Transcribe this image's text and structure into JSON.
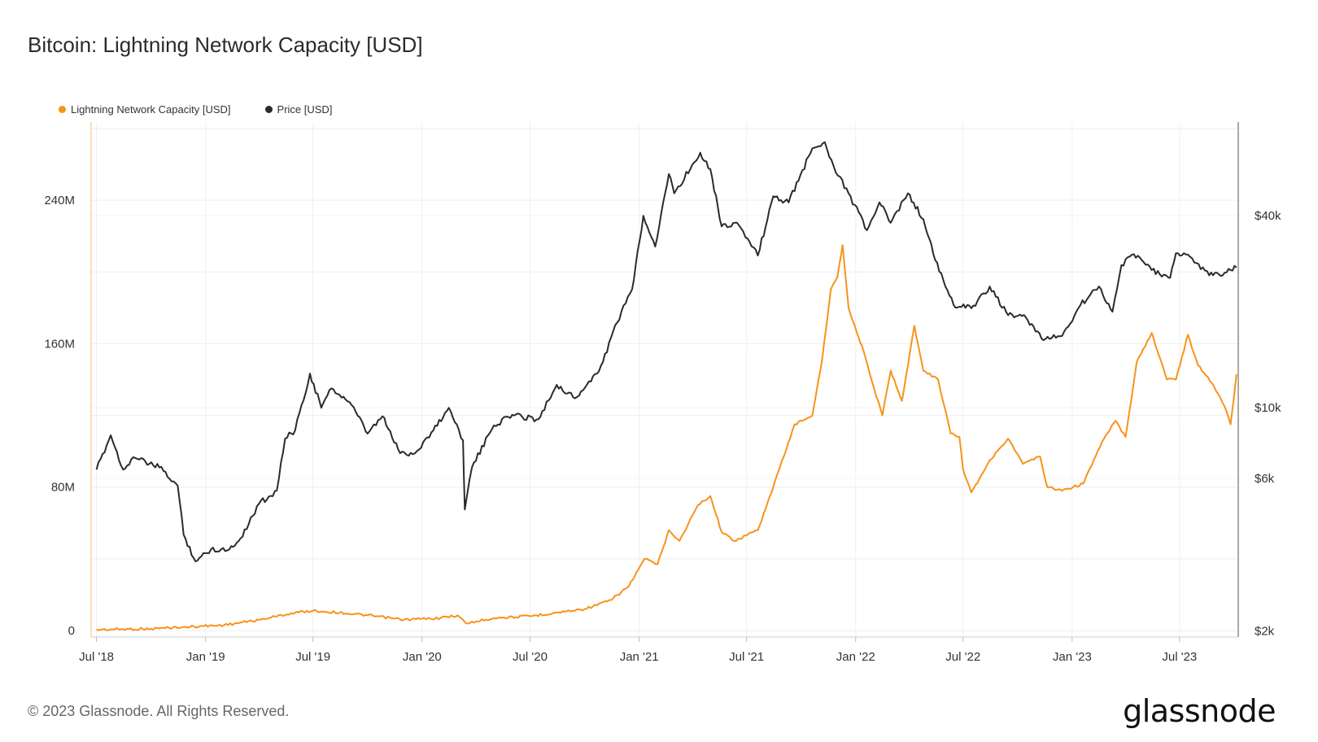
{
  "title": "Bitcoin: Lightning Network Capacity [USD]",
  "legend": [
    {
      "label": "Lightning Network Capacity [USD]",
      "color": "#f7931a"
    },
    {
      "label": "Price [USD]",
      "color": "#2b2b2b"
    }
  ],
  "footer": {
    "copyright": "© 2023 Glassnode. All Rights Reserved.",
    "brand": "glassnode"
  },
  "chart_data": {
    "type": "line",
    "title": "Bitcoin: Lightning Network Capacity [USD]",
    "x_ticks": [
      "Jul '18",
      "Jan '19",
      "Jul '19",
      "Jan '20",
      "Jul '20",
      "Jan '21",
      "Jul '21",
      "Jan '22",
      "Jul '22",
      "Jan '23",
      "Jul '23"
    ],
    "y_left": {
      "ticks": [
        "0",
        "80M",
        "160M",
        "240M"
      ],
      "tick_values": [
        0,
        80000000,
        160000000,
        240000000
      ],
      "range": [
        0,
        280000000
      ],
      "scale": "linear"
    },
    "y_right": {
      "ticks": [
        "$2k",
        "$6k",
        "$10k",
        "$40k"
      ],
      "tick_values": [
        2000,
        6000,
        10000,
        40000
      ],
      "scale": "log"
    },
    "grid": true,
    "legend_position": "top-left",
    "series": [
      {
        "name": "Lightning Network Capacity [USD]",
        "axis": "left",
        "color": "#f7931a",
        "points": [
          [
            "2018-07-01",
            500000
          ],
          [
            "2018-10-01",
            1000000
          ],
          [
            "2018-11-25",
            2000000
          ],
          [
            "2019-02-01",
            3000000
          ],
          [
            "2019-04-01",
            6000000
          ],
          [
            "2019-06-01",
            10000000
          ],
          [
            "2019-07-01",
            11000000
          ],
          [
            "2019-08-15",
            10000000
          ],
          [
            "2019-10-01",
            8500000
          ],
          [
            "2019-12-01",
            6000000
          ],
          [
            "2020-02-01",
            7000000
          ],
          [
            "2020-03-01",
            8500000
          ],
          [
            "2020-03-15",
            4000000
          ],
          [
            "2020-05-01",
            7000000
          ],
          [
            "2020-07-01",
            8000000
          ],
          [
            "2020-08-15",
            10000000
          ],
          [
            "2020-10-01",
            12000000
          ],
          [
            "2020-11-15",
            17000000
          ],
          [
            "2020-12-15",
            25000000
          ],
          [
            "2021-01-10",
            40000000
          ],
          [
            "2021-02-01",
            37000000
          ],
          [
            "2021-02-20",
            56000000
          ],
          [
            "2021-03-10",
            50000000
          ],
          [
            "2021-04-10",
            70000000
          ],
          [
            "2021-05-01",
            75000000
          ],
          [
            "2021-05-20",
            55000000
          ],
          [
            "2021-06-10",
            50000000
          ],
          [
            "2021-07-20",
            56000000
          ],
          [
            "2021-08-15",
            80000000
          ],
          [
            "2021-09-20",
            115000000
          ],
          [
            "2021-10-20",
            120000000
          ],
          [
            "2021-11-05",
            150000000
          ],
          [
            "2021-11-20",
            190000000
          ],
          [
            "2021-12-01",
            197000000
          ],
          [
            "2021-12-10",
            215000000
          ],
          [
            "2021-12-20",
            180000000
          ],
          [
            "2022-01-15",
            155000000
          ],
          [
            "2022-02-01",
            135000000
          ],
          [
            "2022-02-15",
            120000000
          ],
          [
            "2022-03-01",
            145000000
          ],
          [
            "2022-03-20",
            128000000
          ],
          [
            "2022-04-10",
            170000000
          ],
          [
            "2022-04-25",
            145000000
          ],
          [
            "2022-05-20",
            140000000
          ],
          [
            "2022-06-10",
            110000000
          ],
          [
            "2022-06-25",
            108000000
          ],
          [
            "2022-07-01",
            90000000
          ],
          [
            "2022-07-15",
            77000000
          ],
          [
            "2022-08-15",
            95000000
          ],
          [
            "2022-09-15",
            107000000
          ],
          [
            "2022-10-10",
            93000000
          ],
          [
            "2022-11-08",
            97000000
          ],
          [
            "2022-11-20",
            80000000
          ],
          [
            "2022-12-15",
            78000000
          ],
          [
            "2023-01-20",
            82000000
          ],
          [
            "2023-02-20",
            105000000
          ],
          [
            "2023-03-15",
            117000000
          ],
          [
            "2023-04-01",
            108000000
          ],
          [
            "2023-04-20",
            150000000
          ],
          [
            "2023-05-15",
            166000000
          ],
          [
            "2023-06-10",
            140000000
          ],
          [
            "2023-06-25",
            140000000
          ],
          [
            "2023-07-15",
            165000000
          ],
          [
            "2023-08-01",
            148000000
          ],
          [
            "2023-08-25",
            138000000
          ],
          [
            "2023-09-15",
            125000000
          ],
          [
            "2023-09-25",
            115000000
          ],
          [
            "2023-10-05",
            143000000
          ]
        ]
      },
      {
        "name": "Price [USD]",
        "axis": "right",
        "color": "#2b2b2b",
        "points": [
          [
            "2018-07-01",
            6400
          ],
          [
            "2018-07-25",
            8200
          ],
          [
            "2018-08-15",
            6400
          ],
          [
            "2018-09-01",
            7000
          ],
          [
            "2018-10-15",
            6500
          ],
          [
            "2018-11-15",
            5700
          ],
          [
            "2018-11-25",
            4000
          ],
          [
            "2018-12-15",
            3300
          ],
          [
            "2019-01-10",
            3600
          ],
          [
            "2019-02-10",
            3600
          ],
          [
            "2019-03-01",
            3900
          ],
          [
            "2019-04-01",
            5000
          ],
          [
            "2019-05-01",
            5500
          ],
          [
            "2019-05-15",
            8000
          ],
          [
            "2019-06-01",
            8500
          ],
          [
            "2019-06-26",
            12800
          ],
          [
            "2019-07-15",
            10000
          ],
          [
            "2019-08-01",
            11500
          ],
          [
            "2019-09-01",
            10400
          ],
          [
            "2019-10-01",
            8300
          ],
          [
            "2019-10-26",
            9400
          ],
          [
            "2019-11-25",
            7200
          ],
          [
            "2019-12-20",
            7200
          ],
          [
            "2020-01-20",
            8500
          ],
          [
            "2020-02-15",
            10000
          ],
          [
            "2020-03-10",
            7900
          ],
          [
            "2020-03-13",
            4800
          ],
          [
            "2020-03-25",
            6500
          ],
          [
            "2020-05-01",
            8800
          ],
          [
            "2020-06-01",
            9500
          ],
          [
            "2020-07-15",
            9200
          ],
          [
            "2020-08-15",
            11800
          ],
          [
            "2020-09-15",
            10700
          ],
          [
            "2020-10-25",
            13000
          ],
          [
            "2020-11-25",
            18500
          ],
          [
            "2020-12-20",
            23500
          ],
          [
            "2021-01-08",
            40000
          ],
          [
            "2021-01-28",
            32000
          ],
          [
            "2021-02-20",
            54000
          ],
          [
            "2021-03-01",
            47000
          ],
          [
            "2021-04-14",
            63000
          ],
          [
            "2021-05-01",
            56000
          ],
          [
            "2021-05-20",
            37000
          ],
          [
            "2021-06-15",
            38000
          ],
          [
            "2021-07-20",
            30000
          ],
          [
            "2021-08-15",
            46000
          ],
          [
            "2021-09-10",
            44000
          ],
          [
            "2021-10-20",
            65000
          ],
          [
            "2021-11-10",
            68000
          ],
          [
            "2021-11-25",
            57000
          ],
          [
            "2021-12-20",
            47000
          ],
          [
            "2022-01-20",
            36000
          ],
          [
            "2022-02-10",
            44000
          ],
          [
            "2022-03-01",
            38000
          ],
          [
            "2022-03-30",
            47000
          ],
          [
            "2022-04-25",
            39000
          ],
          [
            "2022-05-15",
            29000
          ],
          [
            "2022-06-15",
            21000
          ],
          [
            "2022-07-15",
            20500
          ],
          [
            "2022-08-15",
            24000
          ],
          [
            "2022-09-15",
            19500
          ],
          [
            "2022-10-15",
            19200
          ],
          [
            "2022-11-10",
            16500
          ],
          [
            "2022-12-15",
            16800
          ],
          [
            "2023-01-15",
            21000
          ],
          [
            "2023-02-15",
            24000
          ],
          [
            "2023-03-10",
            20000
          ],
          [
            "2023-03-25",
            28000
          ],
          [
            "2023-04-15",
            30300
          ],
          [
            "2023-05-15",
            27000
          ],
          [
            "2023-06-15",
            25500
          ],
          [
            "2023-06-25",
            30500
          ],
          [
            "2023-07-15",
            30200
          ],
          [
            "2023-08-20",
            26000
          ],
          [
            "2023-09-15",
            26500
          ],
          [
            "2023-10-05",
            27500
          ]
        ]
      }
    ]
  }
}
